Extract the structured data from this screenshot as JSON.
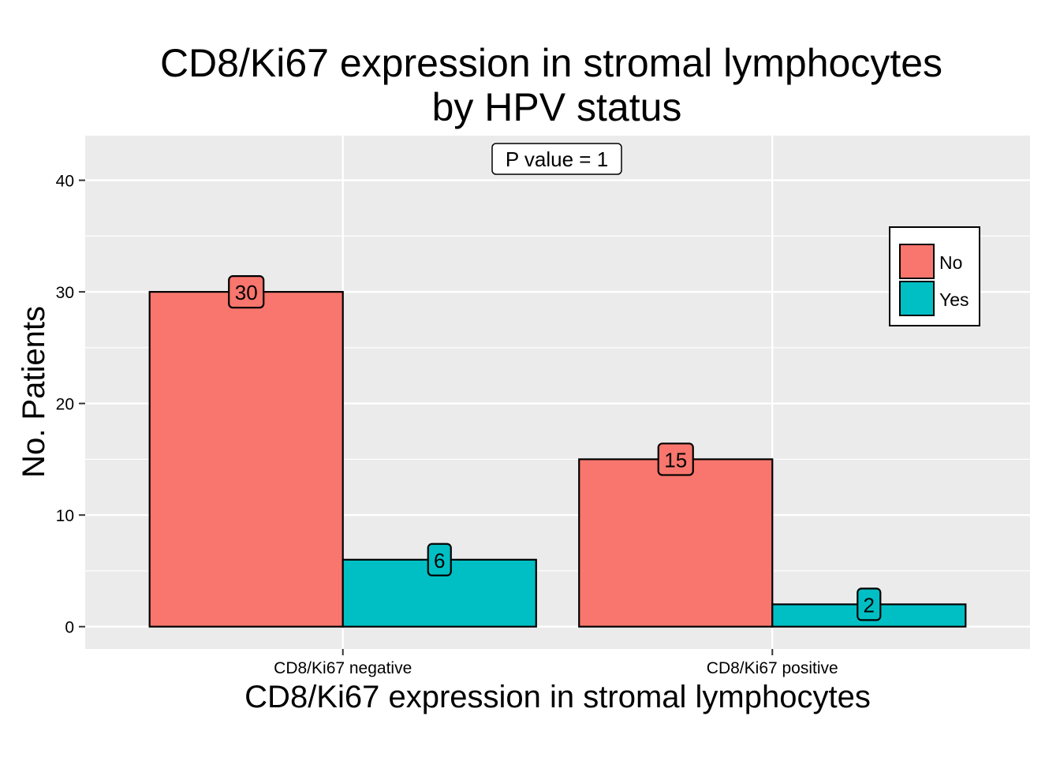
{
  "chart_data": {
    "type": "bar",
    "title_lines": [
      "CD8/Ki67 expression in stromal lymphocytes",
      "by HPV status"
    ],
    "xlabel": "CD8/Ki67 expression in stromal lymphocytes",
    "ylabel": "No. Patients",
    "categories": [
      "CD8/Ki67 negative",
      "CD8/Ki67 positive"
    ],
    "series": [
      {
        "name": "No",
        "values": [
          30,
          15
        ],
        "color": "#F8766D"
      },
      {
        "name": "Yes",
        "values": [
          6,
          2
        ],
        "color": "#00BFC4"
      }
    ],
    "ylim": [
      -2,
      44
    ],
    "yticks": [
      0,
      10,
      20,
      30,
      40
    ],
    "annotation": "P value = 1",
    "legend_position": "top-right",
    "grid": true,
    "panel_color": "#EBEBEB"
  }
}
